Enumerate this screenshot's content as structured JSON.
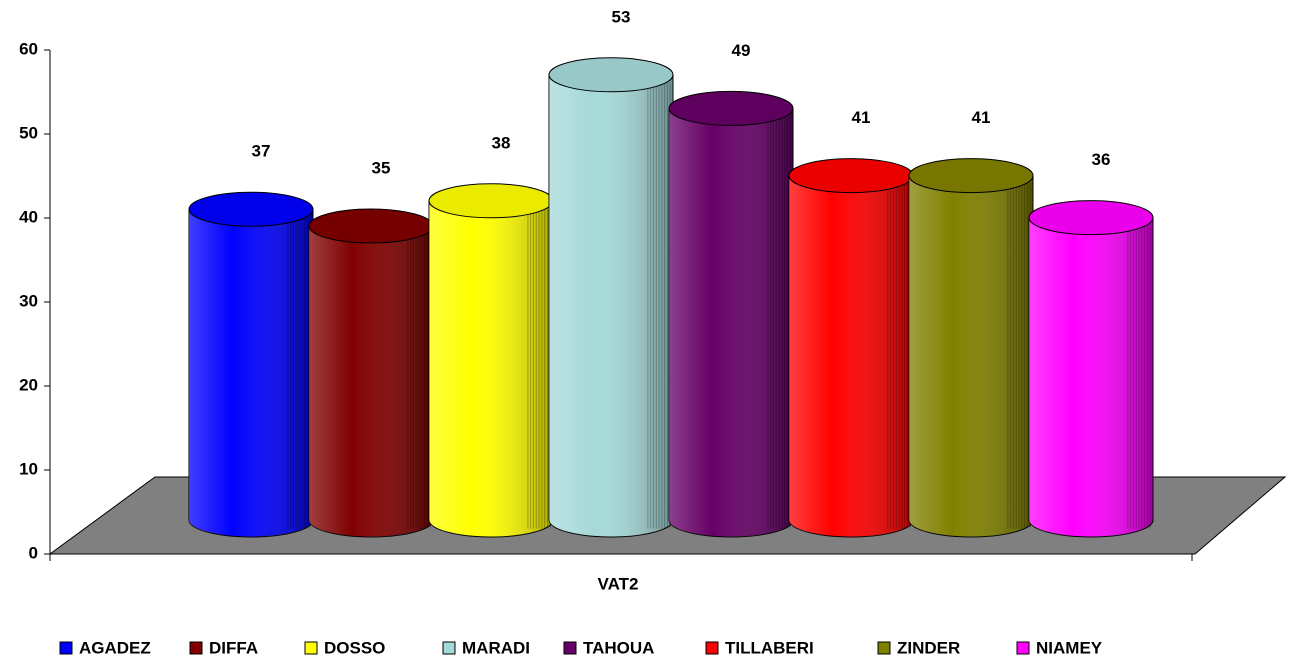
{
  "chart_data": {
    "type": "bar3d-cylinder",
    "categories": [
      "VAT2"
    ],
    "series": [
      {
        "name": "AGADEZ",
        "color": "#0000ff",
        "values": [
          37
        ]
      },
      {
        "name": "DIFFA",
        "color": "#800000",
        "values": [
          35
        ]
      },
      {
        "name": "DOSSO",
        "color": "#ffff00",
        "values": [
          38
        ]
      },
      {
        "name": "MARADI",
        "color": "#a6d9d9",
        "values": [
          53
        ]
      },
      {
        "name": "TAHOUA",
        "color": "#660066",
        "values": [
          49
        ]
      },
      {
        "name": "TILLABERI",
        "color": "#ff0000",
        "values": [
          41
        ]
      },
      {
        "name": "ZINDER",
        "color": "#808000",
        "values": [
          41
        ]
      },
      {
        "name": "NIAMEY",
        "color": "#ff00ff",
        "values": [
          36
        ]
      }
    ],
    "ylim": [
      0,
      60
    ],
    "yticks": [
      0,
      10,
      20,
      30,
      40,
      50,
      60
    ],
    "floor_color": "#808080",
    "legend": "bottom"
  }
}
